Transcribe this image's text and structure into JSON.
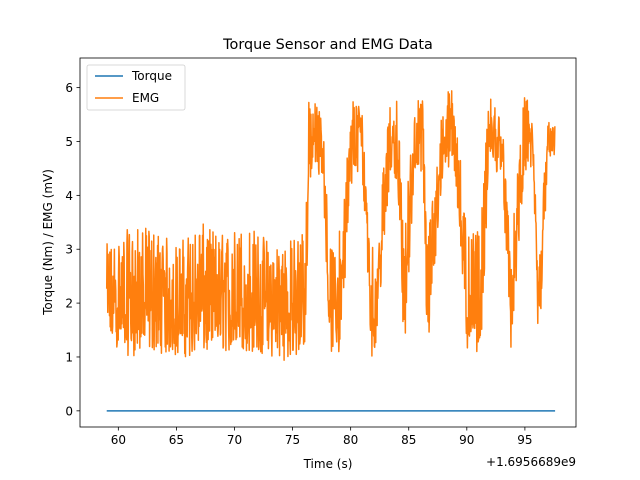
{
  "chart_data": {
    "type": "line",
    "title": "Torque Sensor and EMG Data",
    "xlabel": "Time (s)",
    "ylabel": "Torque (Nm) / EMG (mV)",
    "x_offset_label": "+1.6956689e9",
    "xlim": [
      56.7,
      99.4
    ],
    "ylim": [
      -0.3,
      6.55
    ],
    "x_ticks": [
      60,
      65,
      70,
      75,
      80,
      85,
      90,
      95
    ],
    "x_tick_labels": [
      "60",
      "65",
      "70",
      "75",
      "80",
      "85",
      "90",
      "95"
    ],
    "y_ticks": [
      0,
      1,
      2,
      3,
      4,
      5,
      6
    ],
    "y_tick_labels": [
      "0",
      "1",
      "2",
      "3",
      "4",
      "5",
      "6"
    ],
    "grid": false,
    "legend_position": "top-left",
    "series": [
      {
        "name": "Torque",
        "color": "#1f77b4",
        "x": [
          59.0,
          97.6
        ],
        "y": [
          0.0,
          0.0
        ]
      },
      {
        "name": "EMG",
        "color": "#ff7f0e",
        "x": [
          59.0,
          61.0,
          63.0,
          65.0,
          67.0,
          69.0,
          71.0,
          73.0,
          75.0,
          76.1,
          76.4,
          77.6,
          78.2,
          79.0,
          80.2,
          81.0,
          81.8,
          82.2,
          83.4,
          84.0,
          84.6,
          85.5,
          86.2,
          86.6,
          88.0,
          89.0,
          90.0,
          91.2,
          91.9,
          93.0,
          93.8,
          95.0,
          95.6,
          96.2,
          97.0,
          97.6
        ],
        "y": [
          1.9,
          1.9,
          2.0,
          1.9,
          2.0,
          1.9,
          1.9,
          1.8,
          1.9,
          1.9,
          5.0,
          5.0,
          1.9,
          1.9,
          5.0,
          5.0,
          1.9,
          1.9,
          5.0,
          5.0,
          1.9,
          5.0,
          5.0,
          1.9,
          5.0,
          5.0,
          1.9,
          1.9,
          5.0,
          5.0,
          1.9,
          5.0,
          5.0,
          1.9,
          5.0,
          5.0
        ],
        "envelope": {
          "x": [
            59.0,
            61.0,
            63.0,
            65.0,
            67.0,
            69.0,
            71.0,
            73.0,
            75.0,
            76.1,
            76.4,
            77.6,
            78.2,
            79.0,
            80.2,
            81.0,
            81.8,
            82.2,
            83.4,
            84.0,
            84.6,
            85.5,
            86.2,
            86.6,
            88.0,
            89.0,
            90.0,
            91.2,
            91.9,
            93.0,
            93.8,
            95.0,
            95.6,
            96.2,
            97.0,
            97.6
          ],
          "y_min": [
            1.3,
            1.0,
            1.1,
            1.0,
            1.0,
            1.1,
            1.1,
            1.0,
            0.9,
            1.0,
            4.3,
            4.4,
            1.1,
            1.0,
            4.4,
            4.4,
            1.0,
            1.2,
            4.4,
            4.3,
            1.0,
            4.4,
            4.4,
            1.0,
            4.5,
            4.4,
            1.1,
            1.1,
            4.3,
            4.5,
            1.1,
            4.4,
            4.4,
            1.0,
            4.7,
            4.7
          ],
          "y_max": [
            3.1,
            3.4,
            3.4,
            3.1,
            3.5,
            3.3,
            3.5,
            3.2,
            3.2,
            3.5,
            5.9,
            5.5,
            3.0,
            3.3,
            5.9,
            5.6,
            3.2,
            3.2,
            5.7,
            5.9,
            3.4,
            5.8,
            5.8,
            3.3,
            5.8,
            6.2,
            3.2,
            3.4,
            5.9,
            5.5,
            3.0,
            6.0,
            5.4,
            3.1,
            5.4,
            5.3
          ]
        }
      }
    ]
  }
}
